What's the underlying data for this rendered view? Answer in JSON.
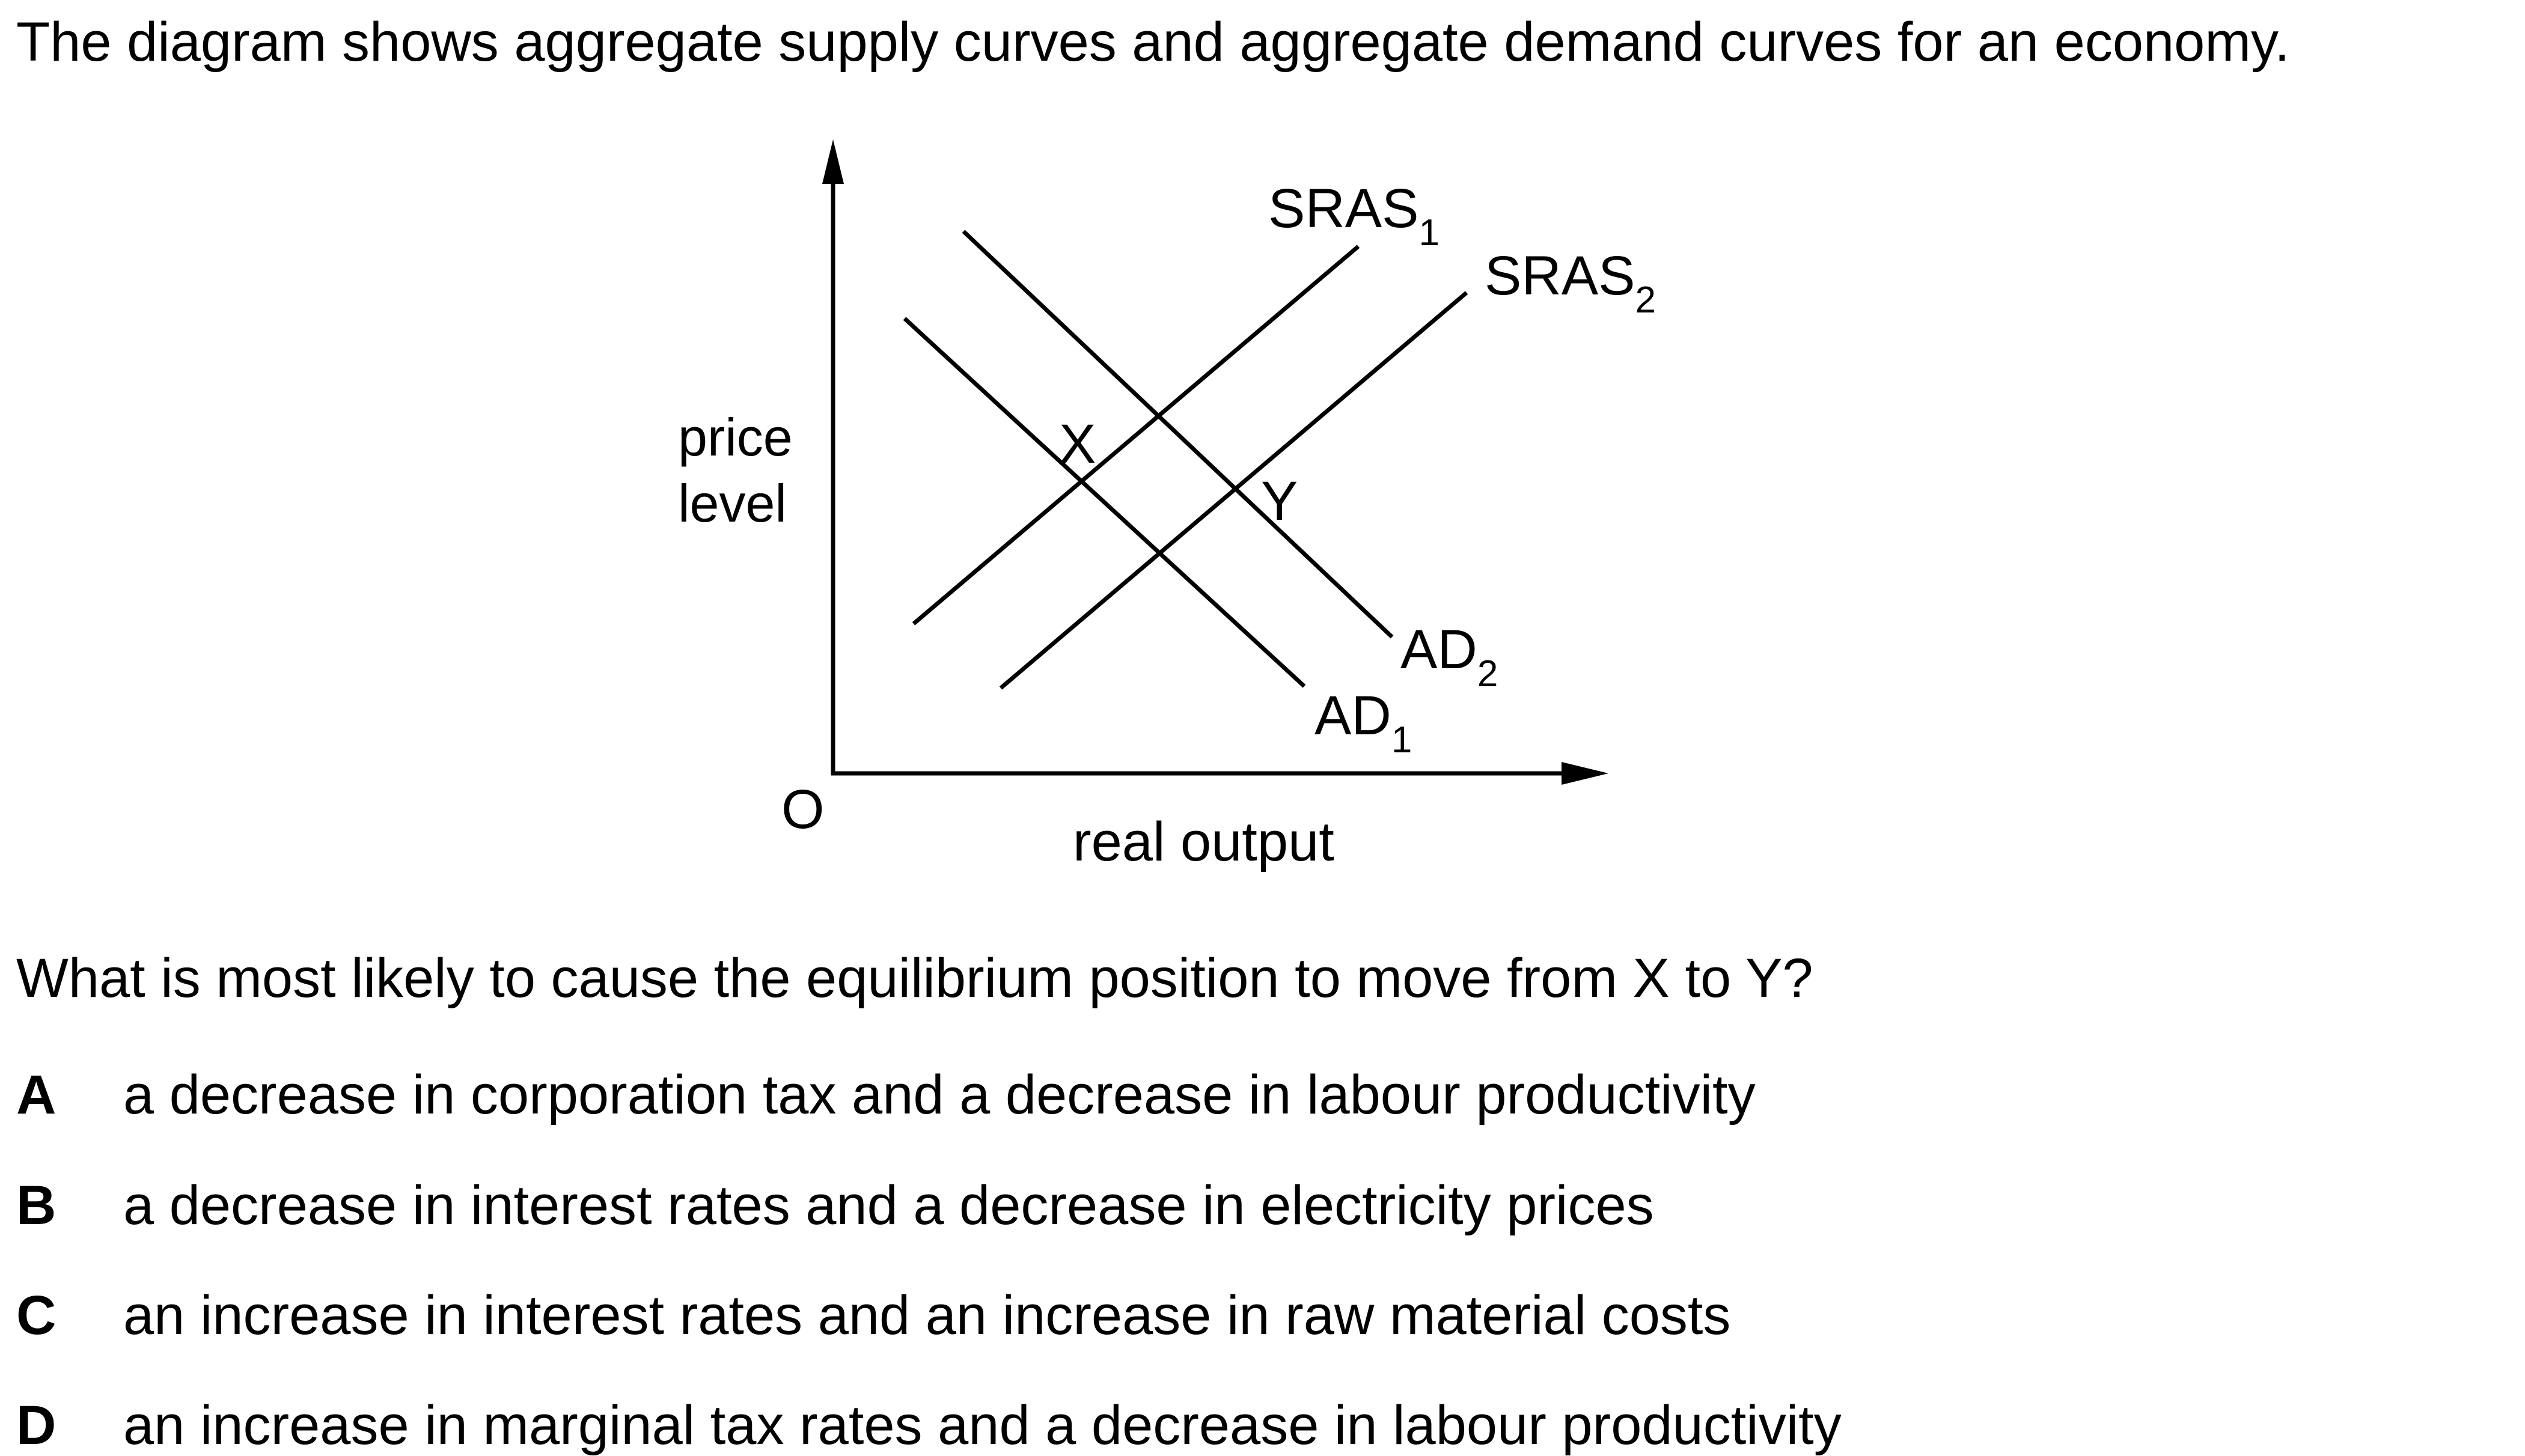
{
  "stem": "The diagram shows aggregate supply curves and aggregate demand curves for an economy.",
  "question": "What is most likely to cause the equilibrium position to move from X to Y?",
  "diagram": {
    "y_axis_label_line1": "price",
    "y_axis_label_line2": "level",
    "x_axis_label": "real output",
    "origin_label": "O",
    "point_x_label": "X",
    "point_y_label": "Y",
    "sras1_label": "SRAS",
    "sras1_sub": "1",
    "sras2_label": "SRAS",
    "sras2_sub": "2",
    "ad1_label": "AD",
    "ad1_sub": "1",
    "ad2_label": "AD",
    "ad2_sub": "2"
  },
  "options": [
    {
      "letter": "A",
      "text": "a decrease in corporation tax and a decrease in labour productivity"
    },
    {
      "letter": "B",
      "text": "a decrease in interest rates and a decrease in electricity prices"
    },
    {
      "letter": "C",
      "text": "an increase in interest rates and an increase in raw material costs"
    },
    {
      "letter": "D",
      "text": "an increase in marginal tax rates and a decrease in labour productivity"
    }
  ]
}
